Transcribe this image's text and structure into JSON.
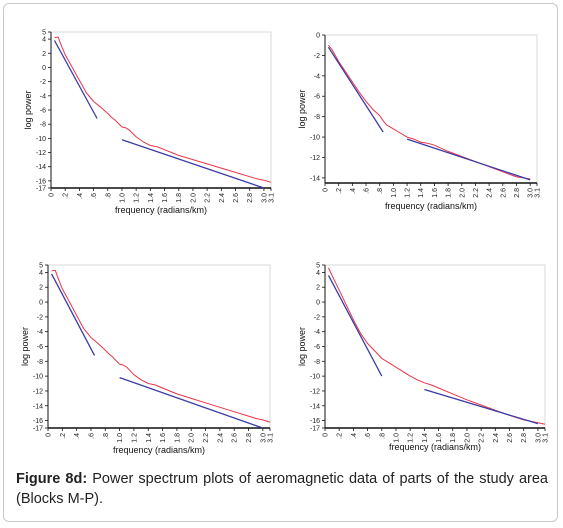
{
  "caption": {
    "label": "Figure 8d:",
    "text": " Power spectrum plots of aeromagnetic data of parts of the study area (Blocks M-P)."
  },
  "colors": {
    "spectrum": "#e8354a",
    "fit": "#3a3aa8",
    "axis": "#111111",
    "frame": "#c9c9c9"
  },
  "chart_data": [
    {
      "type": "line",
      "xlabel": "frequency (radians/km)",
      "ylabel": "log power",
      "xlim": [
        0,
        3.1
      ],
      "ylim": [
        -17,
        5
      ],
      "xticks": [
        "0",
        ".2",
        ".4",
        ".6",
        ".8",
        "1.0",
        "1.2",
        "1.4",
        "1.6",
        "1.8",
        "2.0",
        "2.2",
        "2.4",
        "2.6",
        "2.8",
        "3.0",
        "3.1"
      ],
      "yticks": [
        "5",
        "4",
        "2",
        "0",
        "-2",
        "-4",
        "-6",
        "-8",
        "-10",
        "-12",
        "-14",
        "-16",
        "-17"
      ],
      "series": [
        {
          "x": [
            0.05,
            0.1,
            0.15,
            0.2,
            0.3,
            0.4,
            0.5,
            0.6,
            0.7,
            0.8,
            0.85,
            0.9,
            1.0,
            1.05,
            1.1,
            1.2,
            1.3,
            1.4,
            1.5,
            1.6,
            1.7,
            1.8,
            1.9,
            2.0,
            2.2,
            2.4,
            2.6,
            2.8,
            2.9,
            3.0,
            3.1
          ],
          "y": [
            4.2,
            4.3,
            3.0,
            1.8,
            0.0,
            -1.8,
            -3.6,
            -4.8,
            -5.6,
            -6.5,
            -7.0,
            -7.4,
            -8.4,
            -8.5,
            -8.8,
            -9.8,
            -10.5,
            -11.0,
            -11.2,
            -11.6,
            -12.0,
            -12.4,
            -12.7,
            -13.0,
            -13.6,
            -14.2,
            -14.8,
            -15.4,
            -15.7,
            -15.9,
            -16.2
          ]
        },
        {
          "x": [
            0.05,
            0.65
          ],
          "y": [
            3.8,
            -7.2
          ]
        },
        {
          "x": [
            1.0,
            3.0
          ],
          "y": [
            -10.2,
            -17.0
          ]
        }
      ]
    },
    {
      "type": "line",
      "xlabel": "frequency (radians/km)",
      "ylabel": "log power",
      "xlim": [
        0,
        3.1
      ],
      "ylim": [
        -14.5,
        0
      ],
      "xticks": [
        "0",
        ".2",
        ".4",
        ".6",
        ".8",
        "1.0",
        "1.2",
        "1.4",
        "1.6",
        "1.8",
        "2.0",
        "2.2",
        "2.4",
        "2.6",
        "2.8",
        "3.0",
        "3.1"
      ],
      "yticks": [
        "0",
        "-2",
        "-4",
        "-6",
        "-8",
        "-10",
        "-12",
        "-14"
      ],
      "series": [
        {
          "x": [
            0.05,
            0.1,
            0.15,
            0.2,
            0.3,
            0.4,
            0.5,
            0.6,
            0.7,
            0.8,
            0.85,
            0.9,
            1.0,
            1.1,
            1.2,
            1.3,
            1.4,
            1.5,
            1.6,
            1.8,
            2.0,
            2.2,
            2.4,
            2.6,
            2.8,
            3.0
          ],
          "y": [
            -1.0,
            -1.4,
            -2.0,
            -2.6,
            -3.6,
            -4.6,
            -5.6,
            -6.5,
            -7.3,
            -7.9,
            -8.4,
            -8.8,
            -9.2,
            -9.6,
            -10.0,
            -10.2,
            -10.5,
            -10.6,
            -10.8,
            -11.4,
            -11.9,
            -12.4,
            -12.9,
            -13.4,
            -13.9,
            -14.1
          ]
        },
        {
          "x": [
            0.05,
            0.85
          ],
          "y": [
            -1.2,
            -9.5
          ]
        },
        {
          "x": [
            1.2,
            3.0
          ],
          "y": [
            -10.2,
            -14.2
          ]
        }
      ]
    },
    {
      "type": "line",
      "xlabel": "frequency (radians/km)",
      "ylabel": "log power",
      "xlim": [
        0,
        3.1
      ],
      "ylim": [
        -17,
        5
      ],
      "xticks": [
        "0",
        ".2",
        ".4",
        ".6",
        ".8",
        "1.0",
        "1.2",
        "1.4",
        "1.6",
        "1.8",
        "2.0",
        "2.2",
        "2.4",
        "2.6",
        "2.8",
        "3.0",
        "3.1"
      ],
      "yticks": [
        "5",
        "4",
        "2",
        "0",
        "-2",
        "-4",
        "-6",
        "-8",
        "-10",
        "-12",
        "-14",
        "-16",
        "-17"
      ],
      "series": [
        {
          "x": [
            0.05,
            0.1,
            0.15,
            0.2,
            0.3,
            0.4,
            0.5,
            0.6,
            0.7,
            0.8,
            0.85,
            0.9,
            1.0,
            1.05,
            1.1,
            1.2,
            1.3,
            1.4,
            1.5,
            1.6,
            1.7,
            1.8,
            1.9,
            2.0,
            2.2,
            2.4,
            2.6,
            2.8,
            2.9,
            3.0,
            3.1
          ],
          "y": [
            4.2,
            4.3,
            3.0,
            1.8,
            0.0,
            -1.8,
            -3.6,
            -4.8,
            -5.6,
            -6.5,
            -7.0,
            -7.4,
            -8.4,
            -8.5,
            -8.8,
            -9.8,
            -10.5,
            -11.0,
            -11.2,
            -11.6,
            -12.0,
            -12.4,
            -12.7,
            -13.0,
            -13.6,
            -14.2,
            -14.8,
            -15.4,
            -15.7,
            -15.9,
            -16.2
          ]
        },
        {
          "x": [
            0.05,
            0.65
          ],
          "y": [
            3.8,
            -7.2
          ]
        },
        {
          "x": [
            1.0,
            3.0
          ],
          "y": [
            -10.2,
            -17.0
          ]
        }
      ]
    },
    {
      "type": "line",
      "xlabel": "frequency (radians/km)",
      "ylabel": "log power",
      "xlim": [
        0,
        3.1
      ],
      "ylim": [
        -17,
        5
      ],
      "xticks": [
        "0",
        ".2",
        ".4",
        ".6",
        ".8",
        "1.0",
        "1.2",
        "1.4",
        "1.6",
        "1.8",
        "2.0",
        "2.2",
        "2.4",
        "2.6",
        "2.8",
        "3.0",
        "3.1"
      ],
      "yticks": [
        "5",
        "4",
        "2",
        "0",
        "-2",
        "-4",
        "-6",
        "-8",
        "-10",
        "-12",
        "-14",
        "-16",
        "-17"
      ],
      "series": [
        {
          "x": [
            0.05,
            0.1,
            0.15,
            0.2,
            0.3,
            0.4,
            0.5,
            0.6,
            0.7,
            0.8,
            0.85,
            0.9,
            1.0,
            1.1,
            1.2,
            1.3,
            1.4,
            1.5,
            1.6,
            1.8,
            2.0,
            2.2,
            2.4,
            2.6,
            2.8,
            3.0,
            3.1
          ],
          "y": [
            4.6,
            3.6,
            2.6,
            1.6,
            -0.4,
            -2.4,
            -4.2,
            -5.6,
            -6.6,
            -7.6,
            -7.9,
            -8.2,
            -8.8,
            -9.4,
            -10.0,
            -10.5,
            -10.9,
            -11.2,
            -11.6,
            -12.4,
            -13.2,
            -13.9,
            -14.6,
            -15.3,
            -15.9,
            -16.3,
            -16.5
          ]
        },
        {
          "x": [
            0.05,
            0.8
          ],
          "y": [
            3.6,
            -10.0
          ]
        },
        {
          "x": [
            1.4,
            3.0
          ],
          "y": [
            -11.8,
            -16.4
          ]
        }
      ]
    }
  ]
}
